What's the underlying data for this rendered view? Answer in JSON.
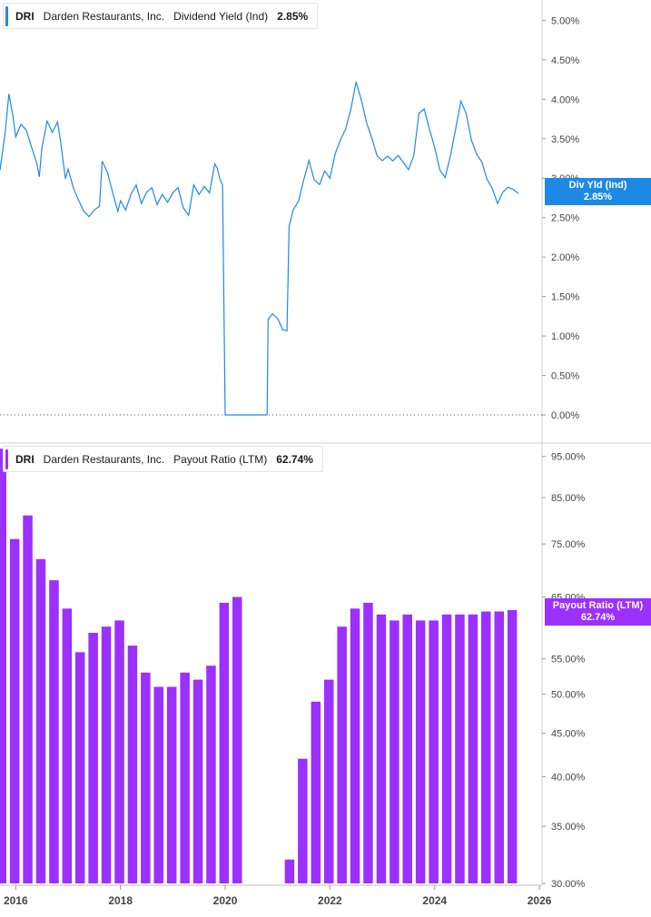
{
  "chart_data": [
    {
      "type": "line",
      "ticker": "DRI",
      "company": "Darden Restaurants, Inc.",
      "metric": "Dividend Yield (Ind)",
      "current_value": "2.85%",
      "badge": {
        "label": "Div Yld (Ind)",
        "value": "2.85%"
      },
      "color": "#1e88e5",
      "ylim": [
        0,
        5.2
      ],
      "yticks": [
        {
          "v": 0.0,
          "label": "0.00%"
        },
        {
          "v": 0.5,
          "label": "0.50%"
        },
        {
          "v": 1.0,
          "label": "1.00%"
        },
        {
          "v": 1.5,
          "label": "1.50%"
        },
        {
          "v": 2.0,
          "label": "2.00%"
        },
        {
          "v": 2.5,
          "label": "2.50%"
        },
        {
          "v": 3.0,
          "label": "3.00%"
        },
        {
          "v": 3.5,
          "label": "3.50%"
        },
        {
          "v": 4.0,
          "label": "4.00%"
        },
        {
          "v": 4.5,
          "label": "4.50%"
        },
        {
          "v": 5.0,
          "label": "5.00%"
        }
      ],
      "series": [
        {
          "points": [
            [
              2015.7,
              3.1
            ],
            [
              2015.8,
              3.6
            ],
            [
              2015.87,
              4.05
            ],
            [
              2015.95,
              3.8
            ],
            [
              2016.0,
              3.5
            ],
            [
              2016.1,
              3.7
            ],
            [
              2016.2,
              3.6
            ],
            [
              2016.3,
              3.4
            ],
            [
              2016.4,
              3.2
            ],
            [
              2016.45,
              3.0
            ],
            [
              2016.5,
              3.4
            ],
            [
              2016.6,
              3.7
            ],
            [
              2016.7,
              3.6
            ],
            [
              2016.8,
              3.7
            ],
            [
              2016.85,
              3.5
            ],
            [
              2016.95,
              3.0
            ],
            [
              2017.0,
              3.1
            ],
            [
              2017.1,
              2.9
            ],
            [
              2017.2,
              2.7
            ],
            [
              2017.3,
              2.6
            ],
            [
              2017.4,
              2.5
            ],
            [
              2017.5,
              2.6
            ],
            [
              2017.6,
              2.65
            ],
            [
              2017.65,
              3.2
            ],
            [
              2017.75,
              3.1
            ],
            [
              2017.85,
              2.8
            ],
            [
              2017.95,
              2.6
            ],
            [
              2018.0,
              2.7
            ],
            [
              2018.1,
              2.6
            ],
            [
              2018.2,
              2.8
            ],
            [
              2018.3,
              2.9
            ],
            [
              2018.4,
              2.7
            ],
            [
              2018.5,
              2.8
            ],
            [
              2018.6,
              2.9
            ],
            [
              2018.7,
              2.65
            ],
            [
              2018.8,
              2.8
            ],
            [
              2018.9,
              2.7
            ],
            [
              2019.0,
              2.8
            ],
            [
              2019.1,
              2.9
            ],
            [
              2019.2,
              2.6
            ],
            [
              2019.3,
              2.55
            ],
            [
              2019.4,
              2.9
            ],
            [
              2019.5,
              2.8
            ],
            [
              2019.6,
              2.9
            ],
            [
              2019.7,
              2.8
            ],
            [
              2019.8,
              3.2
            ],
            [
              2019.85,
              3.1
            ],
            [
              2019.9,
              3.0
            ],
            [
              2019.95,
              2.9
            ],
            [
              2020.0,
              0.0
            ],
            [
              2020.8,
              0.0
            ],
            [
              2020.82,
              1.2
            ],
            [
              2020.9,
              1.3
            ],
            [
              2021.0,
              1.2
            ],
            [
              2021.1,
              1.1
            ],
            [
              2021.18,
              1.05
            ],
            [
              2021.22,
              2.4
            ],
            [
              2021.3,
              2.6
            ],
            [
              2021.4,
              2.7
            ],
            [
              2021.5,
              3.0
            ],
            [
              2021.6,
              3.2
            ],
            [
              2021.7,
              3.0
            ],
            [
              2021.8,
              2.9
            ],
            [
              2021.9,
              3.1
            ],
            [
              2022.0,
              3.0
            ],
            [
              2022.1,
              3.3
            ],
            [
              2022.2,
              3.5
            ],
            [
              2022.3,
              3.6
            ],
            [
              2022.4,
              3.9
            ],
            [
              2022.5,
              4.2
            ],
            [
              2022.6,
              4.0
            ],
            [
              2022.7,
              3.7
            ],
            [
              2022.8,
              3.5
            ],
            [
              2022.9,
              3.3
            ],
            [
              2023.0,
              3.2
            ],
            [
              2023.1,
              3.3
            ],
            [
              2023.2,
              3.2
            ],
            [
              2023.3,
              3.3
            ],
            [
              2023.4,
              3.2
            ],
            [
              2023.5,
              3.1
            ],
            [
              2023.6,
              3.3
            ],
            [
              2023.7,
              3.8
            ],
            [
              2023.8,
              3.9
            ],
            [
              2023.9,
              3.6
            ],
            [
              2024.0,
              3.4
            ],
            [
              2024.1,
              3.1
            ],
            [
              2024.2,
              3.0
            ],
            [
              2024.3,
              3.3
            ],
            [
              2024.4,
              3.6
            ],
            [
              2024.5,
              4.0
            ],
            [
              2024.6,
              3.8
            ],
            [
              2024.7,
              3.5
            ],
            [
              2024.8,
              3.3
            ],
            [
              2024.9,
              3.2
            ],
            [
              2025.0,
              3.0
            ],
            [
              2025.1,
              2.85
            ],
            [
              2025.2,
              2.7
            ],
            [
              2025.3,
              2.8
            ],
            [
              2025.4,
              2.9
            ],
            [
              2025.5,
              2.85
            ],
            [
              2025.6,
              2.8
            ]
          ]
        }
      ]
    },
    {
      "type": "bar",
      "ticker": "DRI",
      "company": "Darden Restaurants, Inc.",
      "metric": "Payout Ratio (LTM)",
      "current_value": "62.74%",
      "badge": {
        "label": "Payout Ratio (LTM)",
        "value": "62.74%"
      },
      "color": "#9b30ff",
      "ylim": [
        30,
        98
      ],
      "scale": "log",
      "yticks": [
        {
          "v": 30,
          "label": "30.00%"
        },
        {
          "v": 35,
          "label": "35.00%"
        },
        {
          "v": 40,
          "label": "40.00%"
        },
        {
          "v": 45,
          "label": "45.00%"
        },
        {
          "v": 50,
          "label": "50.00%"
        },
        {
          "v": 55,
          "label": "55.00%"
        },
        {
          "v": 65,
          "label": "65.00%"
        },
        {
          "v": 75,
          "label": "75.00%"
        },
        {
          "v": 85,
          "label": "85.00%"
        },
        {
          "v": 95,
          "label": "95.00%"
        }
      ],
      "x": [
        2015.73,
        2015.98,
        2016.23,
        2016.48,
        2016.73,
        2016.98,
        2017.23,
        2017.48,
        2017.73,
        2017.98,
        2018.23,
        2018.48,
        2018.73,
        2018.98,
        2019.23,
        2019.48,
        2019.73,
        2019.98,
        2020.23,
        2021.23,
        2021.48,
        2021.73,
        2021.98,
        2022.23,
        2022.48,
        2022.73,
        2022.98,
        2023.23,
        2023.48,
        2023.73,
        2023.98,
        2024.23,
        2024.48,
        2024.73,
        2024.98,
        2025.23,
        2025.48
      ],
      "values": [
        97,
        76,
        81,
        72,
        68,
        63,
        56,
        59,
        60,
        61,
        57,
        53,
        51,
        51,
        53,
        52,
        54,
        64,
        65,
        32,
        42,
        49,
        52,
        60,
        63,
        64,
        62,
        61,
        62,
        61,
        61,
        62,
        62,
        62,
        62.5,
        62.5,
        62.74
      ]
    }
  ],
  "xaxis": {
    "range": [
      2015.7,
      2026.05
    ],
    "ticks": [
      {
        "v": 2016,
        "label": "2016"
      },
      {
        "v": 2018,
        "label": "2018"
      },
      {
        "v": 2020,
        "label": "2020"
      },
      {
        "v": 2022,
        "label": "2022"
      },
      {
        "v": 2024,
        "label": "2024"
      },
      {
        "v": 2026,
        "label": "2026"
      }
    ]
  }
}
